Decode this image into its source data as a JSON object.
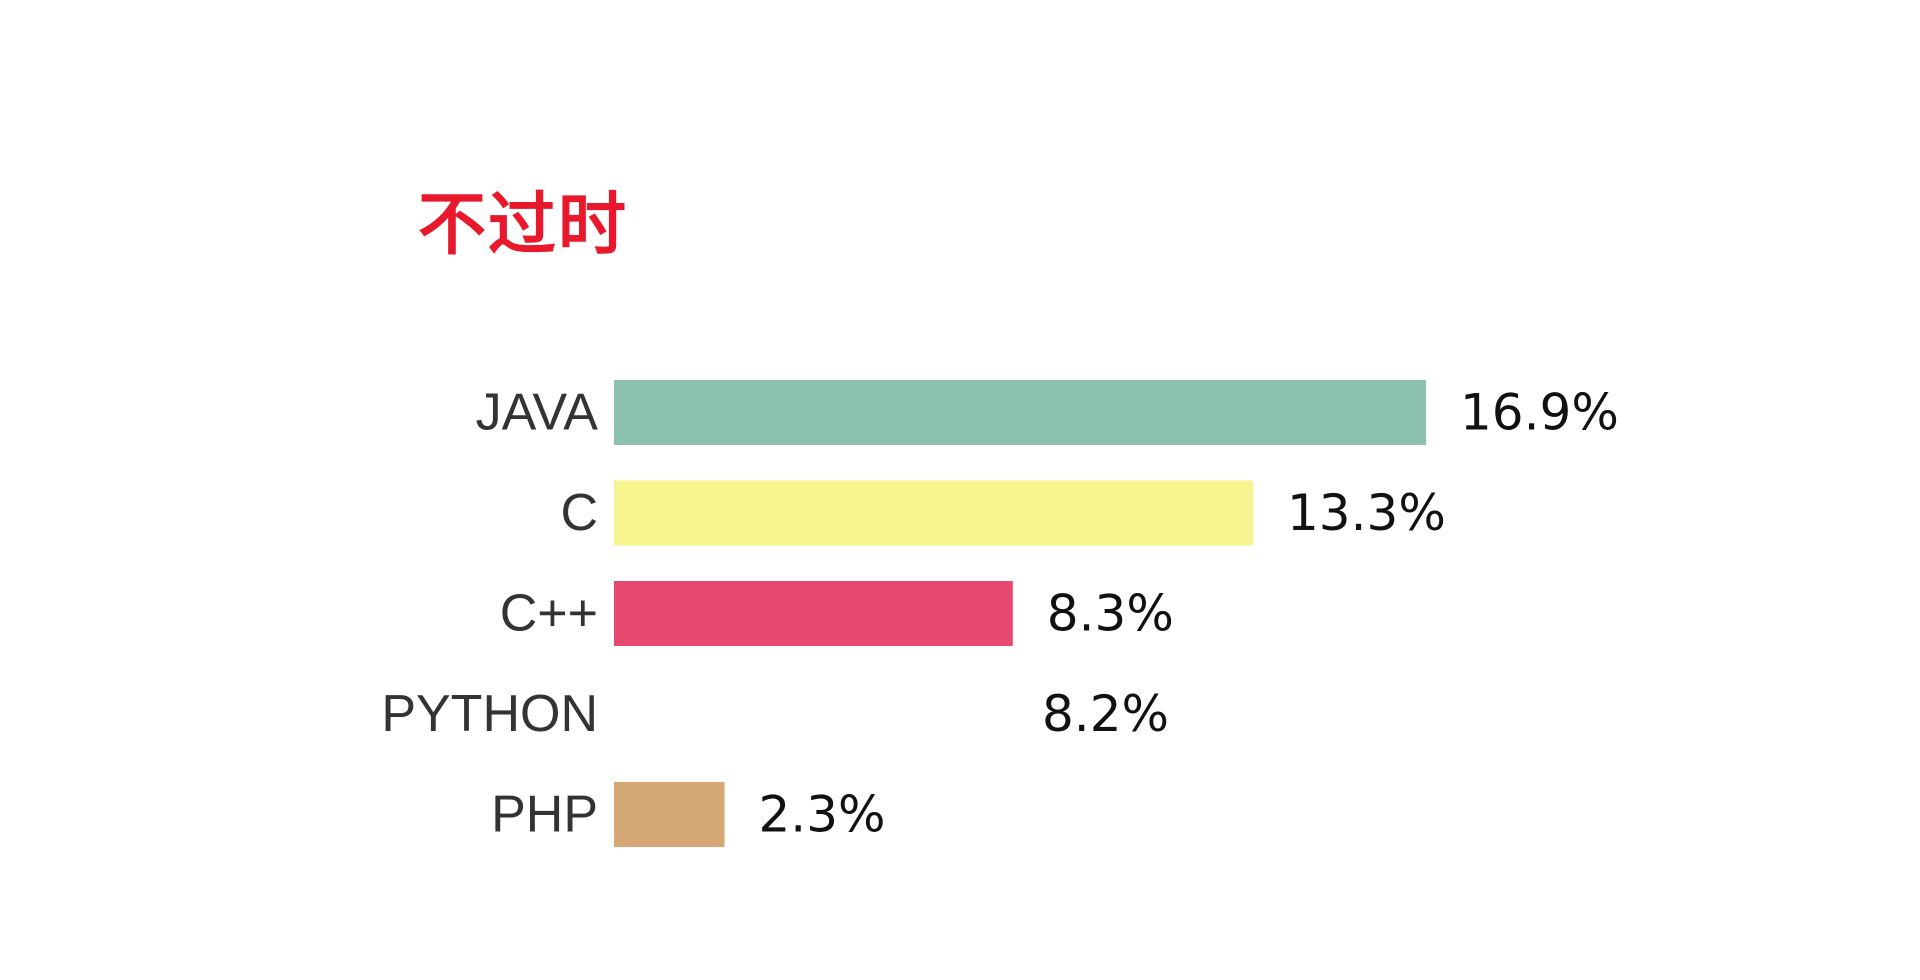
{
  "chart_data": {
    "type": "bar",
    "orientation": "horizontal",
    "title": "不过时",
    "title_color": "#e8192c",
    "categories": [
      "JAVA",
      "C",
      "C++",
      "PYTHON",
      "PHP"
    ],
    "values": [
      16.9,
      13.3,
      8.3,
      8.2,
      2.3
    ],
    "value_labels": [
      "16.9%",
      "13.3%",
      "8.3%",
      "8.2%",
      "2.3%"
    ],
    "colors": [
      "#8cc1b1",
      "#f6f48e",
      "#e64870",
      "#ffffff",
      "#d6a875"
    ],
    "xlim": [
      0,
      16.9
    ],
    "grid": false,
    "legend": "none"
  }
}
